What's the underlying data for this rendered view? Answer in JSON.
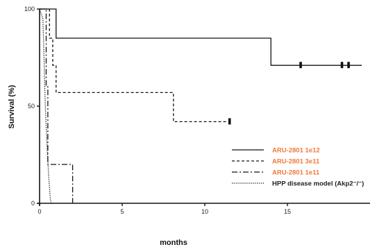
{
  "chart_data": {
    "type": "line",
    "subtype": "kaplan-meier",
    "xlabel": "months",
    "ylabel": "Survival (%)",
    "xlim": [
      0,
      20
    ],
    "ylim": [
      0,
      100
    ],
    "x_ticks": [
      0,
      5,
      10,
      15
    ],
    "y_ticks": [
      0,
      50,
      100
    ],
    "legend_position": "bottom-right",
    "series": [
      {
        "name": "ARU-2801 1e12",
        "style": "solid",
        "name_color": "#f07a3c",
        "x": [
          0,
          1,
          1,
          14,
          14,
          19.5
        ],
        "y": [
          100,
          100,
          85,
          85,
          71,
          71
        ],
        "censored": [
          [
            15.8,
            71
          ],
          [
            18.3,
            71
          ],
          [
            18.7,
            71
          ]
        ]
      },
      {
        "name": "ARU-2801 3e11",
        "style": "dashed",
        "name_color": "#f07a3c",
        "x": [
          0,
          0.6,
          0.6,
          0.8,
          0.8,
          1,
          1,
          8.1,
          8.1,
          11.4
        ],
        "y": [
          100,
          100,
          85,
          85,
          71,
          71,
          57,
          57,
          42,
          42
        ],
        "censored": [
          [
            11.5,
            42
          ]
        ]
      },
      {
        "name": "ARU-2801 1e11",
        "style": "dashdot",
        "name_color": "#f07a3c",
        "x": [
          0,
          0.4,
          0.4,
          0.5,
          0.5,
          2,
          2
        ],
        "y": [
          100,
          100,
          60,
          60,
          20,
          20,
          0
        ],
        "censored": []
      },
      {
        "name": "HPP disease model (Akp2⁻/⁻)",
        "style": "dotted",
        "name_color": "#222222",
        "x": [
          0,
          0.2,
          0.25,
          0.3,
          0.35,
          0.4,
          0.45,
          0.5,
          0.55,
          0.6,
          0.65,
          0.7
        ],
        "y": [
          100,
          95,
          80,
          65,
          50,
          40,
          30,
          22,
          14,
          8,
          2,
          0
        ],
        "censored": []
      }
    ]
  }
}
